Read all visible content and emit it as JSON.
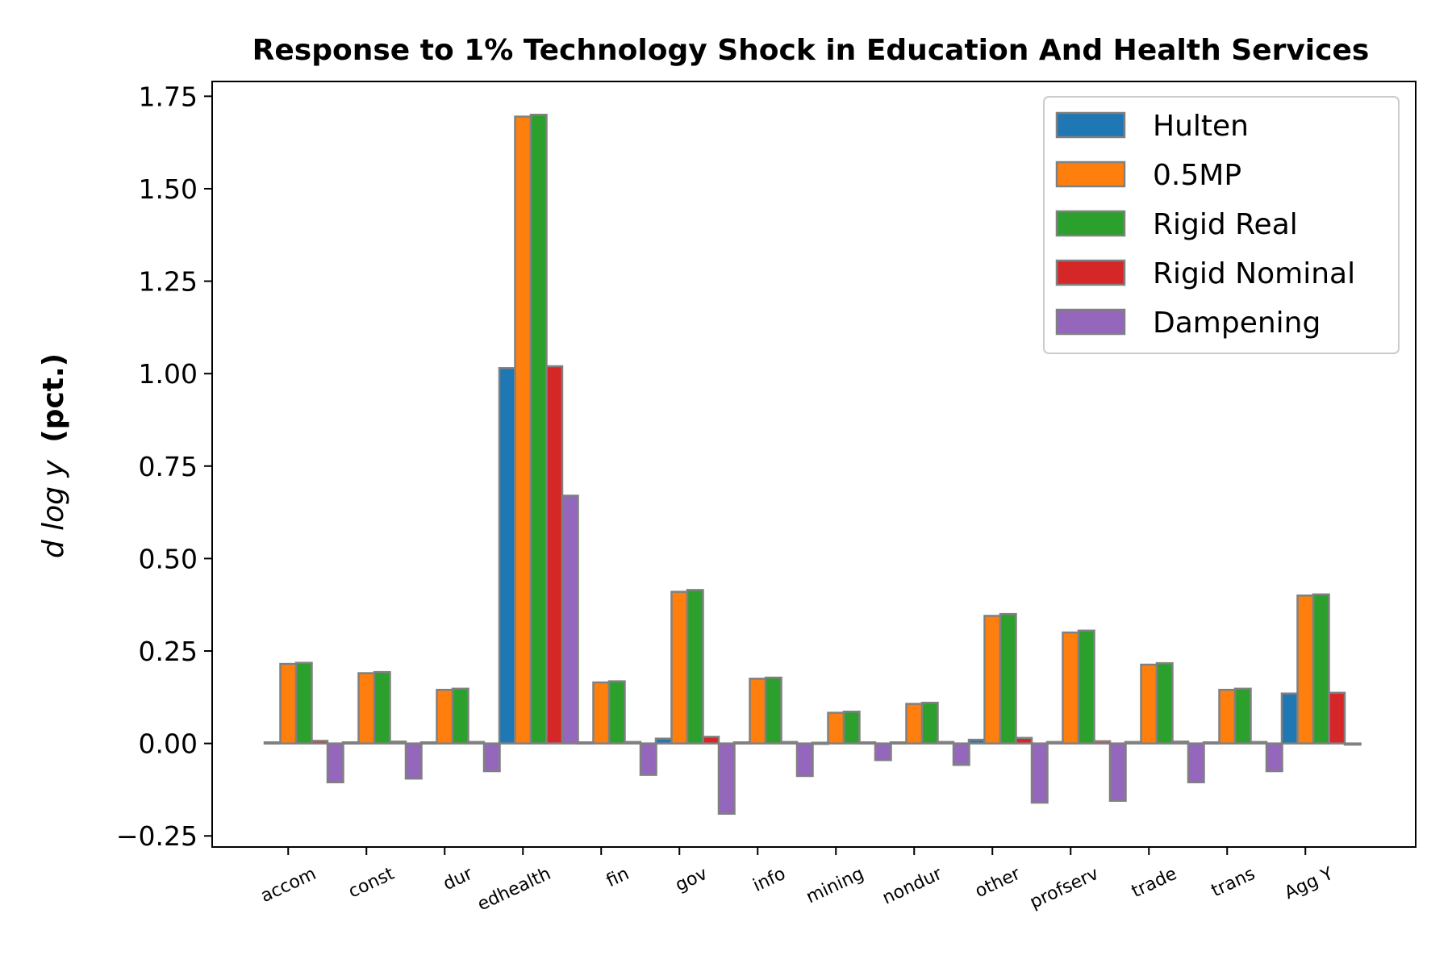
{
  "chart_data": {
    "type": "bar",
    "title": "Response to 1% Technology Shock in Education And Health Services",
    "ylabel_math": "d log y",
    "ylabel": "(pct.)",
    "ylim": [
      -0.28,
      1.79
    ],
    "yticks": [
      "−0.25",
      "0.00",
      "0.25",
      "0.50",
      "0.75",
      "1.00",
      "1.25",
      "1.50",
      "1.75"
    ],
    "ytick_values": [
      -0.25,
      0,
      0.25,
      0.5,
      0.75,
      1.0,
      1.25,
      1.5,
      1.75
    ],
    "legend_position": "top-right",
    "grid": false,
    "categories": [
      "accom",
      "const",
      "dur",
      "edhealth",
      "fin",
      "gov",
      "info",
      "mining",
      "nondur",
      "other",
      "profserv",
      "trade",
      "trans",
      "Agg Y"
    ],
    "series": [
      {
        "name": "Hulten",
        "color": "#1f77b4",
        "values": [
          0.003,
          0.003,
          0.003,
          1.015,
          0.003,
          0.013,
          0.003,
          0.002,
          0.003,
          0.01,
          0.004,
          0.004,
          0.003,
          0.135
        ]
      },
      {
        "name": "0.5MP",
        "color": "#ff7f0e",
        "values": [
          0.215,
          0.19,
          0.145,
          1.695,
          0.165,
          0.41,
          0.175,
          0.083,
          0.107,
          0.345,
          0.3,
          0.213,
          0.145,
          0.4
        ]
      },
      {
        "name": "Rigid Real",
        "color": "#2ca02c",
        "values": [
          0.218,
          0.193,
          0.148,
          1.7,
          0.168,
          0.415,
          0.178,
          0.086,
          0.11,
          0.35,
          0.305,
          0.217,
          0.148,
          0.403
        ]
      },
      {
        "name": "Rigid Nominal",
        "color": "#d62728",
        "values": [
          0.007,
          0.005,
          0.004,
          1.02,
          0.004,
          0.018,
          0.004,
          0.003,
          0.004,
          0.015,
          0.006,
          0.005,
          0.004,
          0.137
        ]
      },
      {
        "name": "Dampening",
        "color": "#9467bd",
        "values": [
          -0.105,
          -0.095,
          -0.075,
          0.67,
          -0.085,
          -0.19,
          -0.088,
          -0.045,
          -0.058,
          -0.16,
          -0.155,
          -0.105,
          -0.075,
          -0.003
        ]
      }
    ]
  }
}
